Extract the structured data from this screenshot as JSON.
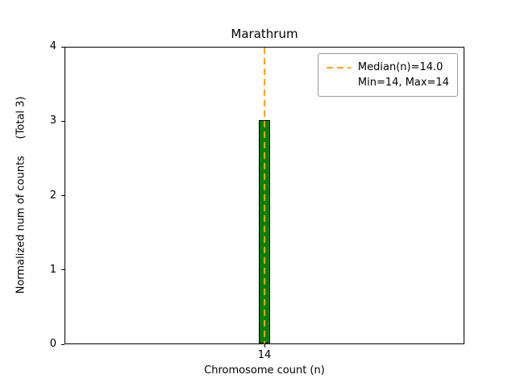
{
  "chart_data": {
    "type": "bar",
    "title": "Marathrum",
    "xlabel": "Chromosome count (n)",
    "ylabel": "Normalized num of counts     (Total 3)",
    "categories": [
      "14"
    ],
    "values": [
      3
    ],
    "ylim": [
      0,
      4
    ],
    "yticks": [
      0,
      1,
      2,
      3,
      4
    ],
    "grid": "off",
    "bar_color": "#008000",
    "bar_edge_color": "#000000",
    "median_line": {
      "x": "14",
      "value": 14.0,
      "color": "#ffa500",
      "style": "dashed"
    },
    "legend": {
      "position": "upper right",
      "entries": [
        {
          "label": "Median(n)=14.0",
          "symbol": "dashed-line",
          "color": "#ffa500"
        },
        {
          "label": "Min=14, Max=14",
          "symbol": "none"
        }
      ]
    }
  }
}
